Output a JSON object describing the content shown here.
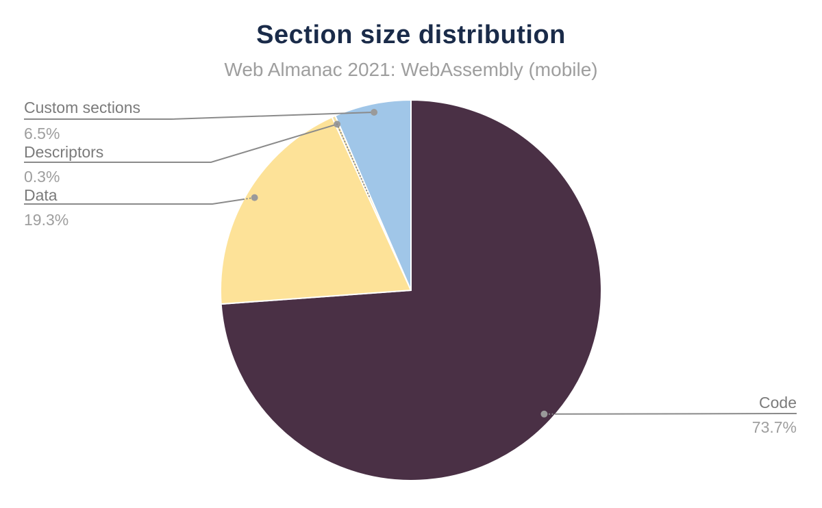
{
  "header": {
    "title": "Section size distribution",
    "subtitle": "Web Almanac 2021: WebAssembly (mobile)"
  },
  "chart_data": {
    "type": "pie",
    "title": "Section size distribution",
    "subtitle": "Web Almanac 2021: WebAssembly (mobile)",
    "unit": "percent",
    "direction": "clockwise",
    "start_angle_deg": 0,
    "legend_position": "outside-labels-with-leader-lines",
    "grid": false,
    "slices": [
      {
        "label": "Code",
        "value": 73.7,
        "display": "73.7%",
        "color": "#4A3045"
      },
      {
        "label": "Data",
        "value": 19.3,
        "display": "19.3%",
        "color": "#FDE298"
      },
      {
        "label": "Descriptors",
        "value": 0.3,
        "display": "0.3%",
        "color": "#F3DFA4"
      },
      {
        "label": "Custom sections",
        "value": 6.5,
        "display": "6.5%",
        "color": "#A0C6E8"
      }
    ]
  },
  "labels": {
    "code": {
      "name": "Code",
      "value": "73.7%"
    },
    "data": {
      "name": "Data",
      "value": "19.3%"
    },
    "descriptors": {
      "name": "Descriptors",
      "value": "0.3%"
    },
    "custom_sections": {
      "name": "Custom sections",
      "value": "6.5%"
    }
  },
  "colors": {
    "background": "#FFFFFF",
    "title": "#1A2B49",
    "subtitle": "#9E9E9E",
    "label_name": "#7B7B7B",
    "label_value": "#9E9E9E",
    "leader_line": "#8A8A8A",
    "leader_dot": "#9A9A9A",
    "slice_border": "#FFFFFF"
  }
}
